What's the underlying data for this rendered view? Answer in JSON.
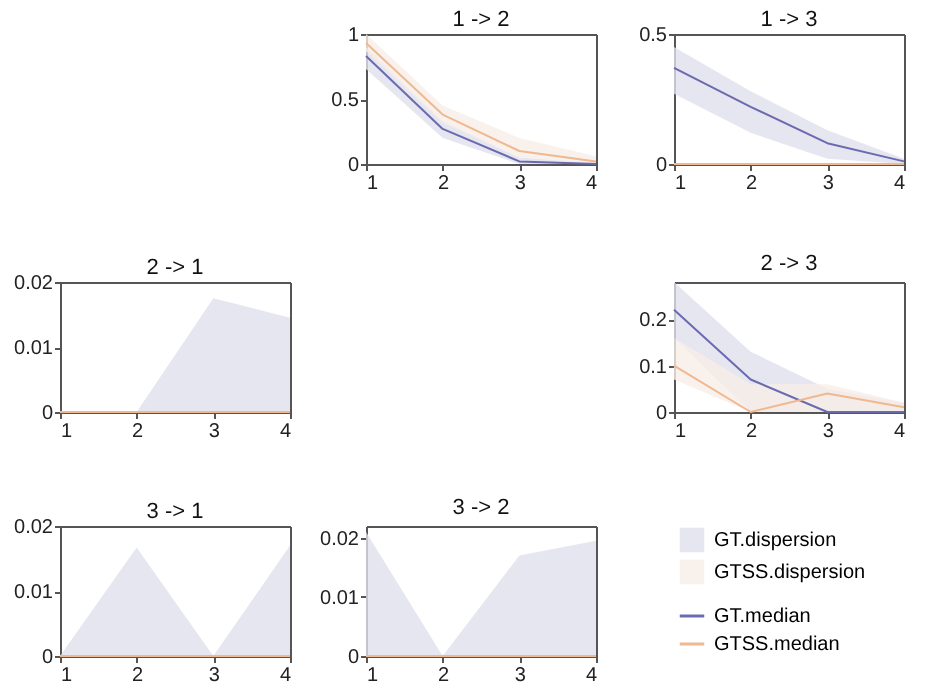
{
  "chart_data": [
    {
      "type": "line",
      "title": "1 -> 2",
      "x": [
        1,
        2,
        3,
        4
      ],
      "xlim": [
        1,
        4
      ],
      "xticks": [
        1,
        2,
        3,
        4
      ],
      "ylim": [
        0,
        1
      ],
      "yticks": [
        0,
        0.5,
        1
      ],
      "legend": false,
      "series": [
        {
          "color": "#6a6ab0",
          "values": [
            0.83,
            0.27,
            0.02,
            0
          ],
          "lower": [
            0.73,
            0.2,
            0,
            0
          ],
          "upper": [
            0.9,
            0.33,
            0.05,
            0.01
          ]
        },
        {
          "color": "#f0b890",
          "values": [
            0.93,
            0.38,
            0.1,
            0.02
          ],
          "lower": [
            0.87,
            0.32,
            0.05,
            0
          ],
          "upper": [
            1,
            0.45,
            0.2,
            0.06
          ]
        }
      ]
    },
    {
      "type": "line",
      "title": "1 -> 3",
      "x": [
        1,
        2,
        3,
        4
      ],
      "xlim": [
        1,
        4
      ],
      "xticks": [
        1,
        2,
        3,
        4
      ],
      "ylim": [
        0,
        0.5
      ],
      "yticks": [
        0,
        0.5
      ],
      "legend": false,
      "series": [
        {
          "color": "#6a6ab0",
          "values": [
            0.37,
            0.22,
            0.08,
            0.01
          ],
          "lower": [
            0.27,
            0.12,
            0.02,
            0
          ],
          "upper": [
            0.45,
            0.28,
            0.13,
            0.02
          ]
        },
        {
          "color": "#f0b890",
          "values": [
            0,
            0,
            0,
            0
          ]
        }
      ]
    },
    {
      "type": "line",
      "title": "2 -> 1",
      "x": [
        1,
        2,
        3,
        4
      ],
      "xlim": [
        1,
        4
      ],
      "xticks": [
        1,
        2,
        3,
        4
      ],
      "ylim": [
        0,
        0.02
      ],
      "yticks": [
        0,
        0.01,
        0.02
      ],
      "legend": false,
      "series": [
        {
          "color": "#6a6ab0",
          "values": [
            null,
            null,
            null,
            null
          ],
          "lower": [
            0,
            0,
            0,
            0
          ],
          "upper": [
            0,
            0,
            0.0175,
            0.0145
          ]
        },
        {
          "color": "#f0b890",
          "values": [
            0,
            0,
            0,
            0
          ]
        }
      ]
    },
    {
      "type": "line",
      "title": "2 -> 3",
      "x": [
        1,
        2,
        3,
        4
      ],
      "xlim": [
        1,
        4
      ],
      "xticks": [
        1,
        2,
        3,
        4
      ],
      "ylim": [
        0,
        0.28
      ],
      "yticks": [
        0,
        0.1,
        0.2
      ],
      "legend": false,
      "series": [
        {
          "color": "#6a6ab0",
          "values": [
            0.22,
            0.07,
            0,
            0
          ],
          "lower": [
            0.16,
            0,
            0,
            0
          ],
          "upper": [
            0.28,
            0.13,
            0.05,
            0.02
          ]
        },
        {
          "color": "#f0b890",
          "values": [
            0.1,
            0,
            0.04,
            0.01
          ],
          "lower": [
            0.07,
            0,
            0,
            0
          ],
          "upper": [
            0.16,
            0.06,
            0.06,
            0.02
          ]
        }
      ]
    },
    {
      "type": "line",
      "title": "3 -> 1",
      "x": [
        1,
        2,
        3,
        4
      ],
      "xlim": [
        1,
        4
      ],
      "xticks": [
        1,
        2,
        3,
        4
      ],
      "ylim": [
        0,
        0.02
      ],
      "yticks": [
        0,
        0.01,
        0.02
      ],
      "legend": false,
      "series": [
        {
          "color": "#6a6ab0",
          "values": [
            null,
            null,
            null,
            null
          ],
          "lower": [
            0,
            0,
            0,
            0
          ],
          "upper": [
            0,
            0.0167,
            0,
            0.017
          ]
        },
        {
          "color": "#f0b890",
          "values": [
            0,
            0,
            0,
            0
          ]
        }
      ]
    },
    {
      "type": "line",
      "title": "3 -> 2",
      "x": [
        1,
        2,
        3,
        4
      ],
      "xlim": [
        1,
        4
      ],
      "xticks": [
        1,
        2,
        3,
        4
      ],
      "ylim": [
        0,
        0.022
      ],
      "yticks": [
        0,
        0.01,
        0.02
      ],
      "legend": "right",
      "annotations": [
        "GT.dispersion",
        "GTSS.dispersion"
      ],
      "series": [
        {
          "name": "GT.median",
          "color": "#6a6ab0",
          "values": [
            null,
            null,
            null,
            null
          ],
          "lower": [
            0,
            0,
            0,
            0
          ],
          "upper": [
            0.021,
            0,
            0.017,
            0.0195
          ]
        },
        {
          "name": "GTSS.median",
          "color": "#f0b890",
          "values": [
            0,
            0,
            0,
            0
          ]
        }
      ]
    }
  ]
}
